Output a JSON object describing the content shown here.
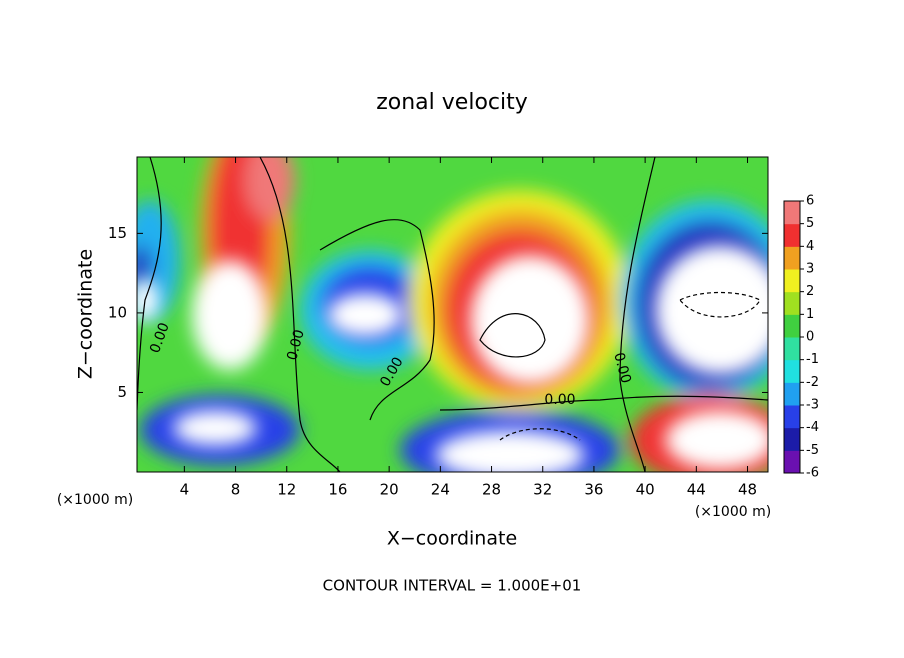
{
  "chart_data": {
    "type": "contour",
    "title": "zonal velocity",
    "x_label": "X−coordinate",
    "y_label": "Z−coordinate",
    "x_unit": "(×1000 m)",
    "y_unit": "(×1000 m)",
    "footer": "CONTOUR INTERVAL = 1.000E+01",
    "xlim": [
      0.3,
      49.6
    ],
    "xticks": [
      4,
      8,
      12,
      16,
      20,
      24,
      28,
      32,
      36,
      40,
      44,
      48
    ],
    "ylim": [
      0,
      19.8
    ],
    "yticks": [
      5,
      10,
      15
    ],
    "colorbar": {
      "lim": [
        -6,
        6
      ],
      "ticks": [
        -6,
        -5,
        -4,
        -3,
        -2,
        -1,
        0,
        1,
        2,
        3,
        4,
        5,
        6
      ],
      "colors": [
        "#6a10b0",
        "#1c1ca8",
        "#2840e8",
        "#20a0f0",
        "#20e0e0",
        "#30e0a0",
        "#40d040",
        "#a0e020",
        "#f0f020",
        "#f0a020",
        "#f03030",
        "#f07878"
      ]
    },
    "contour_labels": [
      "0.00",
      "0.00",
      "0.00",
      "0.00",
      "0.00"
    ]
  }
}
